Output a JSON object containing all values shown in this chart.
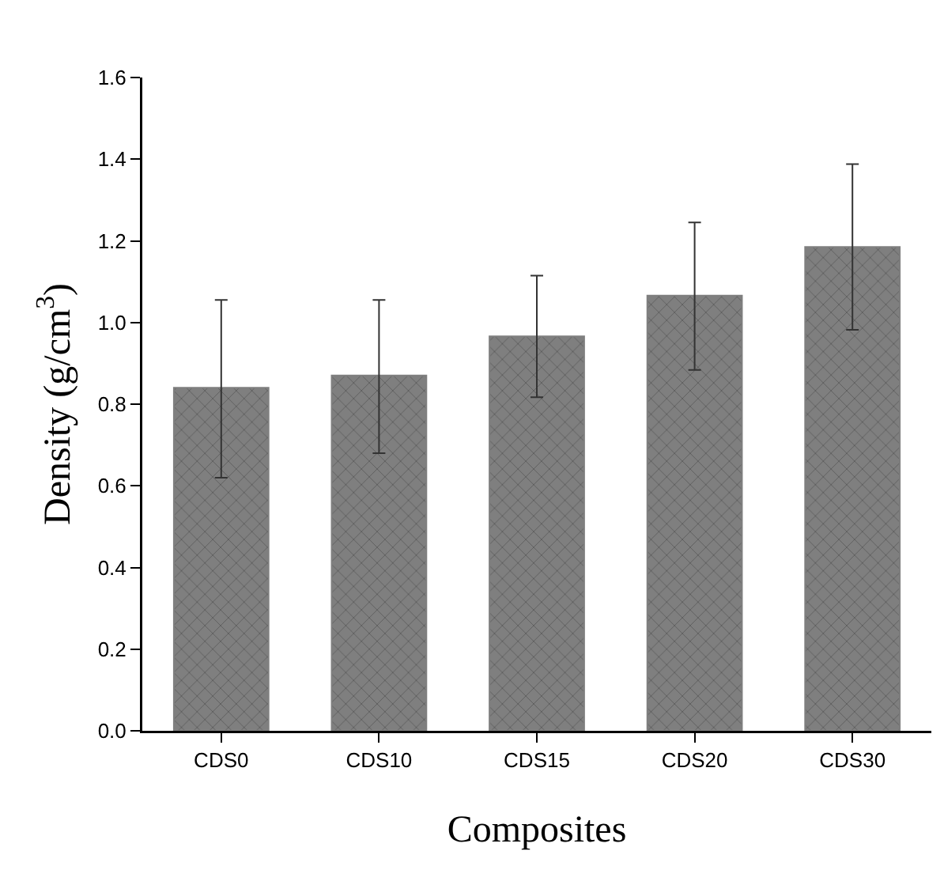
{
  "chart_data": {
    "type": "bar",
    "xlabel": "Composites",
    "ylabel": "Density (g/cm$^{3}$)",
    "categories": [
      "CDS0",
      "CDS10",
      "CDS15",
      "CDS20",
      "CDS30"
    ],
    "series": [
      {
        "color": "#7f7f7f",
        "values": [
          0.84,
          0.87,
          0.966,
          1.066,
          1.185
        ],
        "errors": [
          [
            0.62,
            1.055
          ],
          [
            0.68,
            1.055
          ],
          [
            0.817,
            1.115
          ],
          [
            0.884,
            1.245
          ],
          [
            0.982,
            1.388
          ]
        ]
      }
    ],
    "ylim": [
      0,
      1.6
    ],
    "yticks": [
      {
        "value": 0,
        "label": "0.0"
      },
      0.2,
      0.4,
      0.6,
      0.8,
      {
        "value": 1,
        "label": "1.0"
      },
      1.2,
      1.4,
      1.6
    ],
    "grid": false
  }
}
